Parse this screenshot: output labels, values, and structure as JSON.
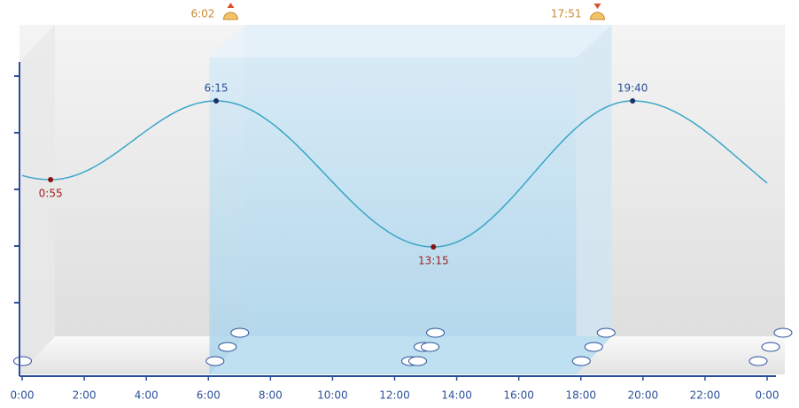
{
  "chart_data": {
    "type": "tide",
    "xlim": [
      0,
      24
    ],
    "xticks": [
      {
        "value": 0,
        "label": "0:00"
      },
      {
        "value": 2,
        "label": "2:00"
      },
      {
        "value": 4,
        "label": "4:00"
      },
      {
        "value": 6,
        "label": "6:00"
      },
      {
        "value": 8,
        "label": "8:00"
      },
      {
        "value": 10,
        "label": "10:00"
      },
      {
        "value": 12,
        "label": "12:00"
      },
      {
        "value": 14,
        "label": "14:00"
      },
      {
        "value": 16,
        "label": "16:00"
      },
      {
        "value": 18,
        "label": "18:00"
      },
      {
        "value": 20,
        "label": "20:00"
      },
      {
        "value": 22,
        "label": "22:00"
      },
      {
        "value": 24,
        "label": "0:00"
      }
    ],
    "high_tides": [
      "6:15",
      "19:40"
    ],
    "low_tides": [
      "0:55",
      "13:15"
    ],
    "sunrise": "6:02",
    "sunset": "17:51",
    "color": "#3aa6c8"
  }
}
